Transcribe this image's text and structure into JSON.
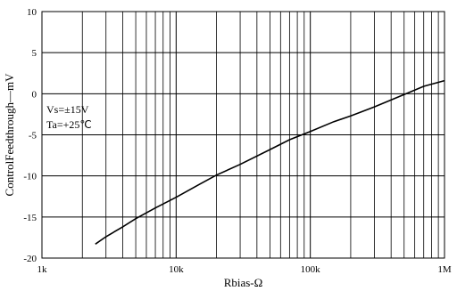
{
  "chart_data": {
    "type": "line",
    "title": "",
    "xlabel": "Rbias-Ω",
    "ylabel": "ControlFeedthrough—mV",
    "x_scale": "log",
    "xlim": [
      1000,
      1000000
    ],
    "ylim": [
      -20,
      10
    ],
    "grid": true,
    "x_ticks": [
      {
        "value": 1000,
        "label": "1k"
      },
      {
        "value": 10000,
        "label": "10k"
      },
      {
        "value": 100000,
        "label": "100k"
      },
      {
        "value": 1000000,
        "label": "1M"
      }
    ],
    "y_ticks": [
      {
        "value": 10,
        "label": "10"
      },
      {
        "value": 5,
        "label": "5"
      },
      {
        "value": 0,
        "label": "0"
      },
      {
        "value": -5,
        "label": "-5"
      },
      {
        "value": -10,
        "label": "-10"
      },
      {
        "value": -15,
        "label": "-15"
      },
      {
        "value": -20,
        "label": "-20"
      }
    ],
    "annotations": [
      "Vs=±15V",
      "Ta=+25℃"
    ],
    "series": [
      {
        "color": "#000000",
        "x": [
          2500,
          3000,
          4000,
          5000,
          7000,
          10000,
          15000,
          20000,
          30000,
          50000,
          70000,
          100000,
          150000,
          200000,
          300000,
          500000,
          700000,
          1000000
        ],
        "y": [
          -18.3,
          -17.4,
          -16.2,
          -15.2,
          -13.9,
          -12.6,
          -11.0,
          -9.9,
          -8.6,
          -6.8,
          -5.6,
          -4.6,
          -3.4,
          -2.7,
          -1.6,
          -0.1,
          0.9,
          1.6
        ]
      }
    ]
  }
}
